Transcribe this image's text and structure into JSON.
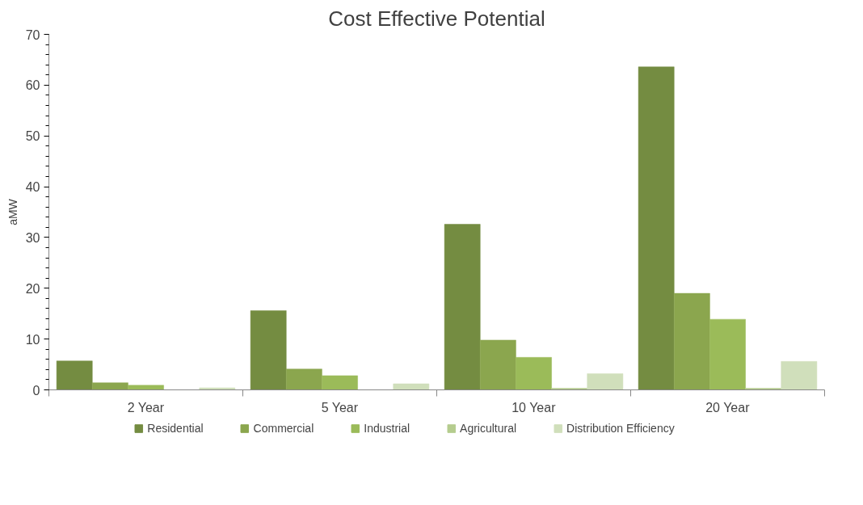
{
  "chart_data": {
    "type": "bar",
    "title": "Cost Effective Potential",
    "ylabel": "aMW",
    "categories": [
      "2 Year",
      "5 Year",
      "10 Year",
      "20 Year"
    ],
    "series": [
      {
        "name": "Residential",
        "color": "#748c41",
        "values": [
          5.7,
          15.6,
          32.6,
          63.6
        ]
      },
      {
        "name": "Commercial",
        "color": "#8ba64e",
        "values": [
          1.4,
          4.1,
          9.8,
          19.0
        ]
      },
      {
        "name": "Industrial",
        "color": "#9bbb59",
        "values": [
          0.9,
          2.8,
          6.4,
          13.9
        ]
      },
      {
        "name": "Agricultural",
        "color": "#b5cc8e",
        "values": [
          0,
          0,
          0.3,
          0.3
        ]
      },
      {
        "name": "Distribution Efficiency",
        "color": "#d0dfbb",
        "values": [
          0.4,
          1.2,
          3.2,
          5.6
        ]
      }
    ],
    "ylim": [
      0,
      70
    ],
    "yticks": [
      0,
      10,
      20,
      30,
      40,
      50,
      60,
      70
    ],
    "grid": false,
    "legend": "bottom"
  }
}
